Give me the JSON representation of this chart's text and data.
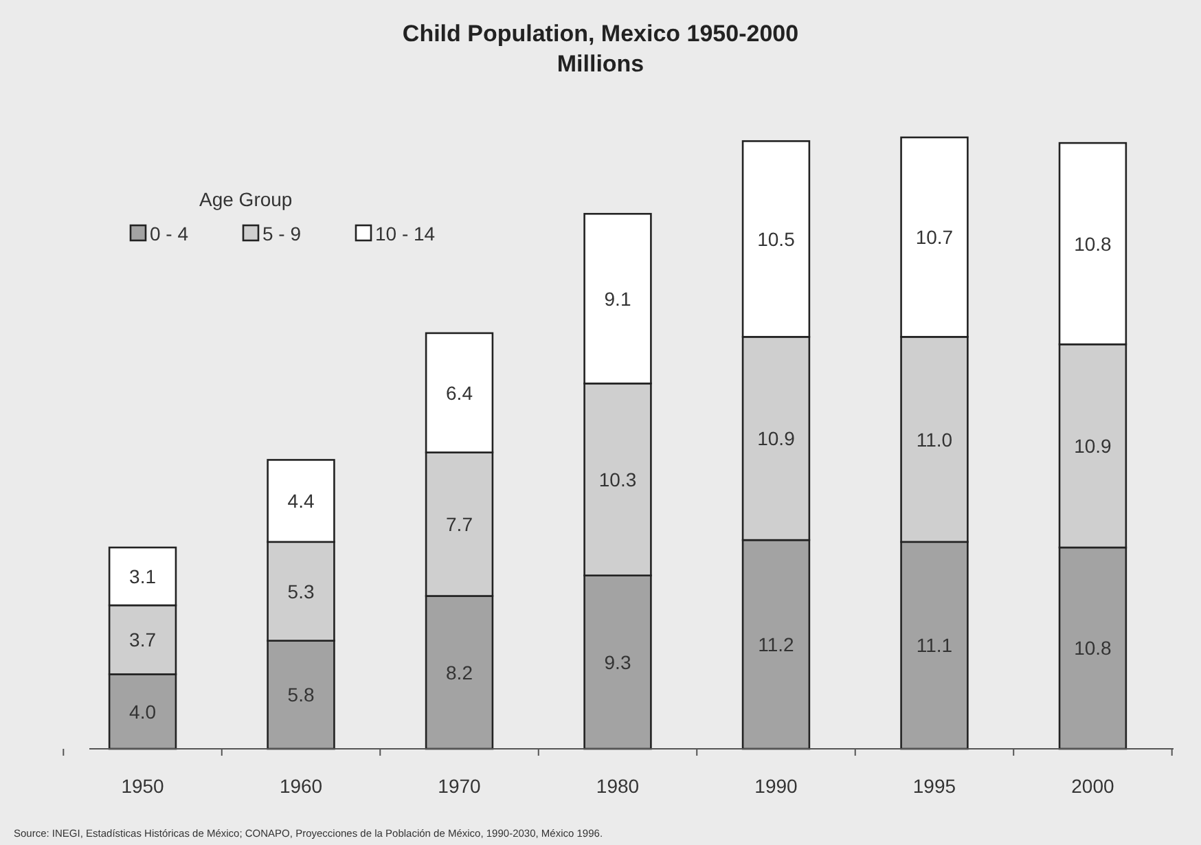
{
  "chart_data": {
    "type": "bar",
    "stacked": true,
    "title": "Child Population, Mexico 1950-2000",
    "subtitle": "Millions",
    "categories": [
      "1950",
      "1960",
      "1970",
      "1980",
      "1990",
      "1995",
      "2000"
    ],
    "series": [
      {
        "name": "0 - 4",
        "color": "#a3a3a3",
        "values": [
          4,
          5.8,
          8.2,
          9.3,
          11.2,
          11.1,
          10.8
        ],
        "value_labels": [
          "4.0",
          "5.8",
          "8.2",
          "9.3",
          "11.2",
          "11.1",
          "10.8"
        ]
      },
      {
        "name": "5 - 9",
        "color": "#cfcfcf",
        "values": [
          3.7,
          5.3,
          7.7,
          10.3,
          10.9,
          11,
          10.9
        ],
        "value_labels": [
          "3.7",
          "5.3",
          "7.7",
          "10.3",
          "10.9",
          "11.0",
          "10.9"
        ]
      },
      {
        "name": "10 - 14",
        "color": "#ffffff",
        "values": [
          3.1,
          4.4,
          6.4,
          9.1,
          10.5,
          10.7,
          10.8
        ],
        "value_labels": [
          "3.1",
          "4.4",
          "6.4",
          "9.1",
          "10.5",
          "10.7",
          "10.8"
        ]
      }
    ],
    "legend": "top left",
    "legend_title": "Age Group",
    "annotations": [
      "Source: INEGI, Estadísticas Históricas de México; CONAPO, Proyecciones de la Población de México, 1990-2030, México 1996."
    ]
  }
}
